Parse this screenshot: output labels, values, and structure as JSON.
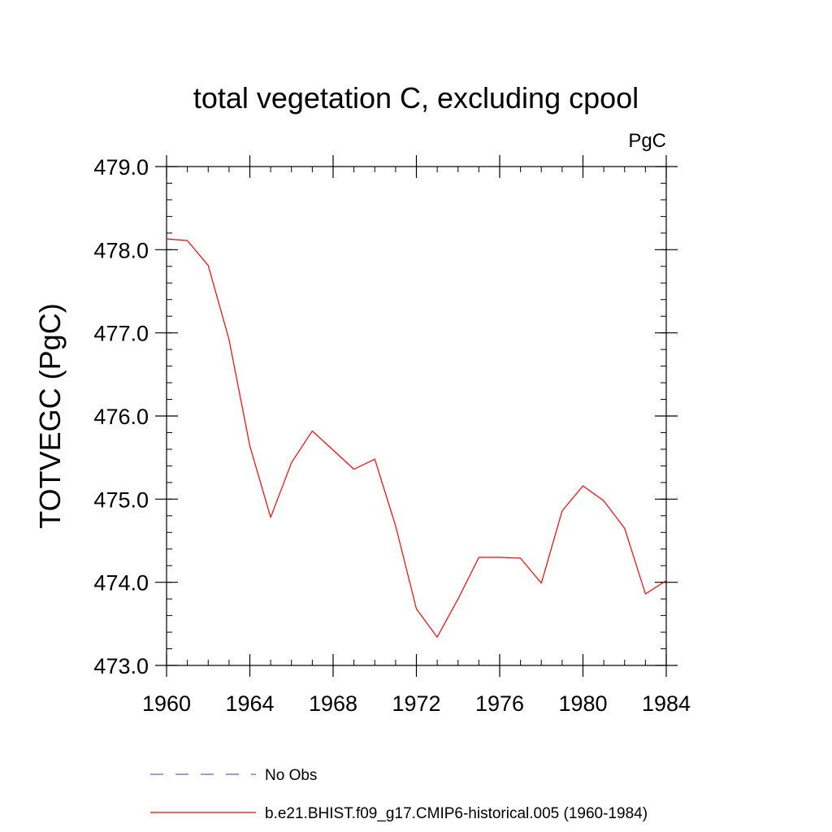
{
  "chart_data": {
    "type": "line",
    "title": "total vegetation C, excluding cpool",
    "units_label": "PgC",
    "xlabel": "",
    "ylabel": "TOTVEGC  (PgC)",
    "xlim": [
      1960,
      1984
    ],
    "ylim": [
      473.0,
      479.0
    ],
    "x_ticks": [
      1960,
      1964,
      1968,
      1972,
      1976,
      1980,
      1984
    ],
    "x_tick_labels": [
      "1960",
      "1964",
      "1968",
      "1972",
      "1976",
      "1980",
      "1984"
    ],
    "y_ticks": [
      473.0,
      474.0,
      475.0,
      476.0,
      477.0,
      478.0,
      479.0
    ],
    "y_tick_labels": [
      "473.0",
      "474.0",
      "475.0",
      "476.0",
      "477.0",
      "478.0",
      "479.0"
    ],
    "grid": false,
    "legend_position": "bottom",
    "series": [
      {
        "name": "b.e21.BHIST.f09_g17.CMIP6-historical.005 (1960-1984)",
        "color": "#ff0000",
        "style": "solid",
        "x": [
          1960,
          1961,
          1962,
          1963,
          1964,
          1965,
          1966,
          1967,
          1968,
          1969,
          1970,
          1971,
          1972,
          1973,
          1974,
          1975,
          1976,
          1977,
          1978,
          1979,
          1980,
          1981,
          1982,
          1983,
          1984
        ],
        "values": [
          478.13,
          478.11,
          477.81,
          476.92,
          475.64,
          474.78,
          475.44,
          475.82,
          475.59,
          475.36,
          475.48,
          474.68,
          473.68,
          473.34,
          473.8,
          474.3,
          474.3,
          474.29,
          473.99,
          474.86,
          475.16,
          474.98,
          474.65,
          473.86,
          474.02
        ]
      }
    ],
    "legend": [
      {
        "label": "No Obs",
        "color": "#6060c0",
        "style": "dashed"
      },
      {
        "label": "b.e21.BHIST.f09_g17.CMIP6-historical.005 (1960-1984)",
        "color": "#ff0000",
        "style": "solid"
      }
    ]
  }
}
